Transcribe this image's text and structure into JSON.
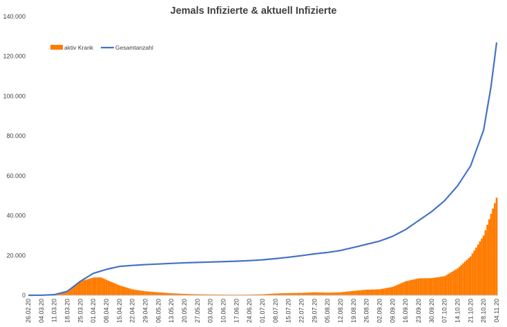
{
  "chart_data": {
    "type": "bar+line",
    "title": "Jemals Infizierte & aktuell Infizierte",
    "xlabel": "",
    "ylabel": "",
    "ylim": [
      0,
      140000
    ],
    "y_ticks": [
      "0",
      "20.000",
      "40.000",
      "60.000",
      "80.000",
      "100.000",
      "120.000",
      "140.000"
    ],
    "y_tick_values": [
      0,
      20000,
      40000,
      60000,
      80000,
      100000,
      120000,
      140000
    ],
    "x_range": [
      "26.02.20",
      "04.11.20"
    ],
    "x_ticks": [
      "26.02.20",
      "04.03.20",
      "11.03.20",
      "18.03.20",
      "25.03.20",
      "01.04.20",
      "08.04.20",
      "15.04.20",
      "22.04.20",
      "29.04.20",
      "06.05.20",
      "13.05.20",
      "20.05.20",
      "27.05.20",
      "03.06.20",
      "10.06.20",
      "17.06.20",
      "24.06.20",
      "01.07.20",
      "08.07.20",
      "15.07.20",
      "22.07.20",
      "29.07.20",
      "05.08.20",
      "12.08.20",
      "19.08.20",
      "26.08.20",
      "02.09.20",
      "09.09.20",
      "16.09.20",
      "23.09.20",
      "30.09.20",
      "07.10.20",
      "14.10.20",
      "21.10.20",
      "28.10.20",
      "04.11.20"
    ],
    "grid": false,
    "legend_position": "top-left",
    "series": [
      {
        "name": "aktiv Krank",
        "type": "bar",
        "color": "#ff7b00",
        "points": [
          [
            "26.02.20",
            0
          ],
          [
            "04.03.20",
            20
          ],
          [
            "11.03.20",
            200
          ],
          [
            "18.03.20",
            1800
          ],
          [
            "25.03.20",
            7000
          ],
          [
            "01.04.20",
            8900
          ],
          [
            "05.04.20",
            9000
          ],
          [
            "08.04.20",
            7800
          ],
          [
            "15.04.20",
            5000
          ],
          [
            "22.04.20",
            3000
          ],
          [
            "29.04.20",
            2000
          ],
          [
            "06.05.20",
            1500
          ],
          [
            "13.05.20",
            1000
          ],
          [
            "20.05.20",
            700
          ],
          [
            "27.05.20",
            500
          ],
          [
            "03.06.20",
            400
          ],
          [
            "10.06.20",
            350
          ],
          [
            "17.06.20",
            300
          ],
          [
            "24.06.20",
            350
          ],
          [
            "01.07.20",
            500
          ],
          [
            "08.07.20",
            900
          ],
          [
            "15.07.20",
            1100
          ],
          [
            "22.07.20",
            1200
          ],
          [
            "29.07.20",
            1500
          ],
          [
            "05.08.20",
            1300
          ],
          [
            "12.08.20",
            1500
          ],
          [
            "19.08.20",
            2200
          ],
          [
            "26.08.20",
            2800
          ],
          [
            "02.09.20",
            3000
          ],
          [
            "09.09.20",
            4200
          ],
          [
            "16.09.20",
            7000
          ],
          [
            "23.09.20",
            8500
          ],
          [
            "30.09.20",
            8600
          ],
          [
            "07.10.20",
            9600
          ],
          [
            "14.10.20",
            13500
          ],
          [
            "21.10.20",
            19500
          ],
          [
            "28.10.20",
            30000
          ],
          [
            "04.11.20",
            49000
          ]
        ]
      },
      {
        "name": "Gesamtanzahl",
        "type": "line",
        "color": "#4472c4",
        "points": [
          [
            "26.02.20",
            0
          ],
          [
            "04.03.20",
            30
          ],
          [
            "11.03.20",
            300
          ],
          [
            "18.03.20",
            2000
          ],
          [
            "25.03.20",
            7000
          ],
          [
            "01.04.20",
            11000
          ],
          [
            "08.04.20",
            13000
          ],
          [
            "15.04.20",
            14500
          ],
          [
            "22.04.20",
            15000
          ],
          [
            "29.04.20",
            15400
          ],
          [
            "06.05.20",
            15700
          ],
          [
            "13.05.20",
            16000
          ],
          [
            "20.05.20",
            16300
          ],
          [
            "27.05.20",
            16500
          ],
          [
            "03.06.20",
            16700
          ],
          [
            "10.06.20",
            16900
          ],
          [
            "17.06.20",
            17100
          ],
          [
            "24.06.20",
            17400
          ],
          [
            "01.07.20",
            17800
          ],
          [
            "08.07.20",
            18400
          ],
          [
            "15.07.20",
            19100
          ],
          [
            "22.07.20",
            19900
          ],
          [
            "29.07.20",
            20800
          ],
          [
            "05.08.20",
            21500
          ],
          [
            "12.08.20",
            22500
          ],
          [
            "19.08.20",
            24000
          ],
          [
            "26.08.20",
            25600
          ],
          [
            "02.09.20",
            27200
          ],
          [
            "09.09.20",
            29600
          ],
          [
            "16.09.20",
            33000
          ],
          [
            "23.09.20",
            37500
          ],
          [
            "30.09.20",
            42000
          ],
          [
            "07.10.20",
            47500
          ],
          [
            "14.10.20",
            55000
          ],
          [
            "21.10.20",
            65000
          ],
          [
            "28.10.20",
            83000
          ],
          [
            "01.11.20",
            105000
          ],
          [
            "04.11.20",
            127000
          ]
        ]
      }
    ]
  }
}
